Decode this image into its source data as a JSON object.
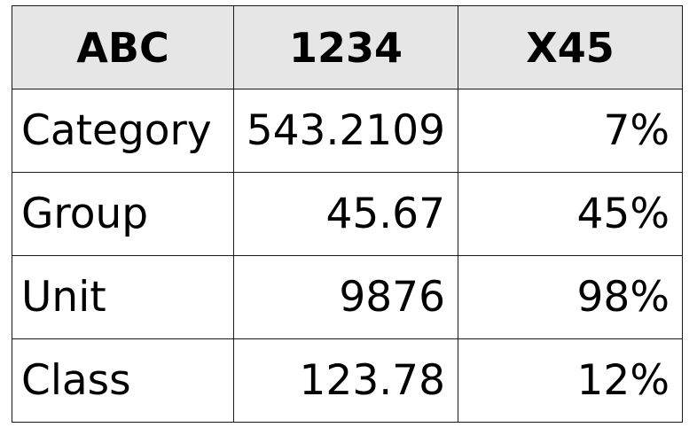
{
  "table": {
    "headers": [
      "ABC",
      "1234",
      "X45"
    ],
    "rows": [
      [
        "Category",
        "543.2109",
        "7%"
      ],
      [
        "Group",
        "45.67",
        "45%"
      ],
      [
        "Unit",
        "9876",
        "98%"
      ],
      [
        "Class",
        "123.78",
        "12%"
      ]
    ]
  }
}
